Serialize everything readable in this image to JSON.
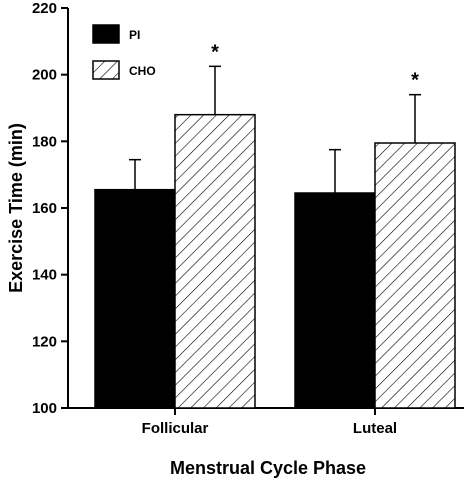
{
  "chart_data": {
    "type": "bar",
    "categories": [
      "Follicular",
      "Luteal"
    ],
    "series": [
      {
        "name": "PI",
        "values": [
          165.5,
          164.5
        ],
        "errors": [
          9,
          13
        ],
        "fill": "solid",
        "color": "#000000",
        "significance": [
          "",
          ""
        ]
      },
      {
        "name": "CHO",
        "values": [
          188,
          179.5
        ],
        "errors": [
          14.5,
          14.5
        ],
        "fill": "hatched",
        "color": "#000000",
        "significance": [
          "*",
          "*"
        ]
      }
    ],
    "xlabel": "Menstrual Cycle Phase",
    "ylabel": "Exercise Time (min)",
    "ylim": [
      100,
      220
    ],
    "yticks": [
      100,
      120,
      140,
      160,
      180,
      200,
      220
    ],
    "grid": false,
    "legend_position": "top-left"
  }
}
